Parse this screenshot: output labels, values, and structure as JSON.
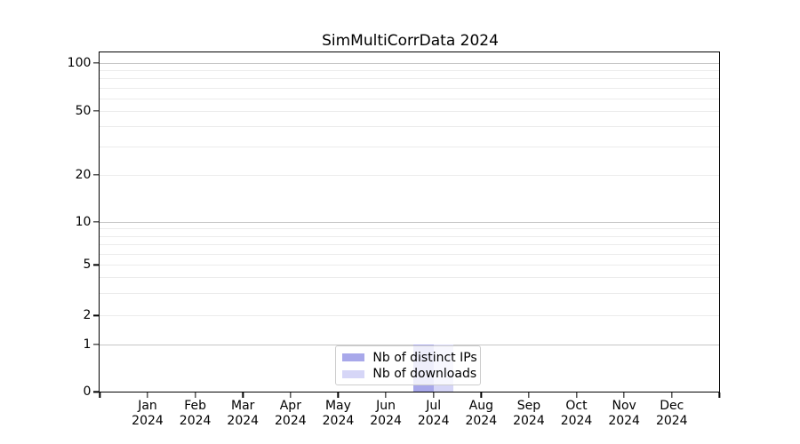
{
  "title": "SimMultiCorrData 2024",
  "colors": {
    "distinct_ips": "#a8a8ea",
    "downloads": "#d6d6f7",
    "grid_major": "#c6c6c6",
    "grid_minor": "#ececec",
    "spine": "#000000",
    "text": "#000000"
  },
  "legend": {
    "items": [
      {
        "label": "Nb of distinct IPs",
        "color": "#a8a8ea"
      },
      {
        "label": "Nb of downloads",
        "color": "#d6d6f7"
      }
    ],
    "position": "lower center"
  },
  "y_axis": {
    "major_ticks": [
      {
        "label": "100",
        "pct": 2.96
      },
      {
        "label": "50",
        "pct": 17.09
      },
      {
        "label": "20",
        "pct": 35.99
      },
      {
        "label": "10",
        "pct": 49.92
      },
      {
        "label": "5",
        "pct": 62.57
      },
      {
        "label": "2",
        "pct": 77.49
      },
      {
        "label": "1",
        "pct": 86.05
      },
      {
        "label": "0",
        "pct": 100
      }
    ],
    "decade_grid_pcts": [
      2.96,
      49.92,
      86.05
    ],
    "minor_grid_pcts": [
      5.1,
      7.51,
      10.24,
      13.38,
      17.09,
      21.7,
      27.64,
      35.99,
      51.83,
      53.98,
      56.41,
      59.24,
      62.57,
      66.2,
      70.89,
      77.49
    ],
    "value_pct_map": {
      "0": 100,
      "1": 86.05,
      "2": 77.49,
      "5": 62.57,
      "10": 49.92,
      "20": 35.99,
      "50": 17.09,
      "100": 2.96
    }
  },
  "x_axis": {
    "months": [
      "Jan",
      "Feb",
      "Mar",
      "Apr",
      "May",
      "Jun",
      "Jul",
      "Aug",
      "Sep",
      "Oct",
      "Nov",
      "Dec"
    ],
    "year": "2024"
  },
  "chart_data": {
    "type": "bar",
    "title": "SimMultiCorrData 2024",
    "x_categories": [
      "Jan 2024",
      "Feb 2024",
      "Mar 2024",
      "Apr 2024",
      "May 2024",
      "Jun 2024",
      "Jul 2024",
      "Aug 2024",
      "Sep 2024",
      "Oct 2024",
      "Nov 2024",
      "Dec 2024"
    ],
    "series": [
      {
        "name": "Nb of distinct IPs",
        "color": "#a8a8ea",
        "values": [
          0,
          0,
          0,
          0,
          0,
          0,
          1,
          0,
          0,
          0,
          0,
          0
        ]
      },
      {
        "name": "Nb of downloads",
        "color": "#d6d6f7",
        "values": [
          0,
          0,
          0,
          0,
          0,
          0,
          1,
          0,
          0,
          0,
          0,
          0
        ]
      }
    ],
    "xlabel": "",
    "ylabel": "",
    "y_scale": "log-like with linear segment to 0",
    "y_ticks": [
      0,
      1,
      2,
      5,
      10,
      20,
      50,
      100
    ],
    "ylim": [
      0,
      115
    ],
    "grid": "horizontal, major and minor",
    "legend_position": "lower center"
  }
}
